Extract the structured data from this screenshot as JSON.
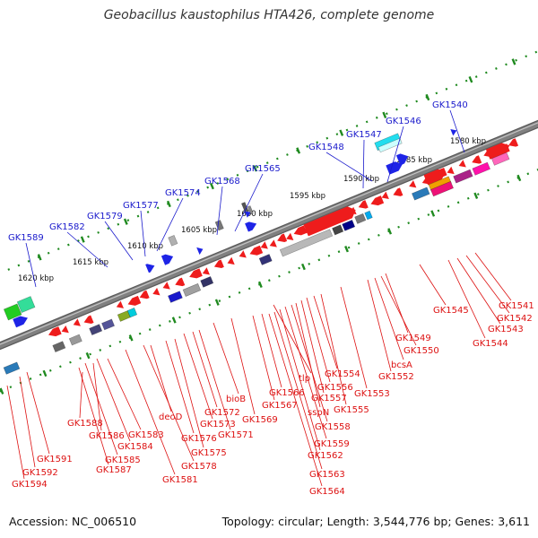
{
  "title": "Geobacillus kaustophilus HTA426, complete genome",
  "footer": {
    "accession": "Accession: NC_006510",
    "topology": "Topology: circular; Length: 3,544,776 bp; Genes: 3,611"
  },
  "colors": {
    "forward_gene": "#1e24e6",
    "reverse_gene": "#ee1c1c",
    "backbone": "#808080",
    "tick": "#1f8a1f",
    "upper_label": "#1a1acc",
    "lower_label": "#dd1111"
  },
  "scale_ticks": [
    "1620 kbp",
    "1615 kbp",
    "1610 kbp",
    "1605 kbp",
    "1600 kbp",
    "1595 kbp",
    "1590 kbp",
    "1585 kbp",
    "1580 kbp"
  ],
  "upper_labels": [
    "GK1589",
    "GK1582",
    "GK1579",
    "GK1577",
    "GK1574",
    "GK1568",
    "GK1565",
    "GK1548",
    "GK1547",
    "GK1546",
    "GK1540"
  ],
  "lower_labels": [
    "GK1594",
    "GK1592",
    "GK1591",
    "GK1587",
    "GK1585",
    "GK1584",
    "GK1586",
    "GK1583",
    "GK1588",
    "GK1581",
    "GK1578",
    "deoD",
    "GK1576",
    "GK1575",
    "GK1573",
    "GK1572",
    "GK1571",
    "bioB",
    "GK1569",
    "GK1567",
    "GK1566",
    "tlp",
    "GK1564",
    "GK1563",
    "GK1562",
    "GK1559",
    "GK1558",
    "sspN",
    "GK1557",
    "GK1556",
    "GK1554",
    "GK1555",
    "GK1553",
    "GK1552",
    "bcsA",
    "GK1550",
    "GK1549",
    "GK1545",
    "GK1544",
    "GK1543",
    "GK1542",
    "GK1541"
  ]
}
